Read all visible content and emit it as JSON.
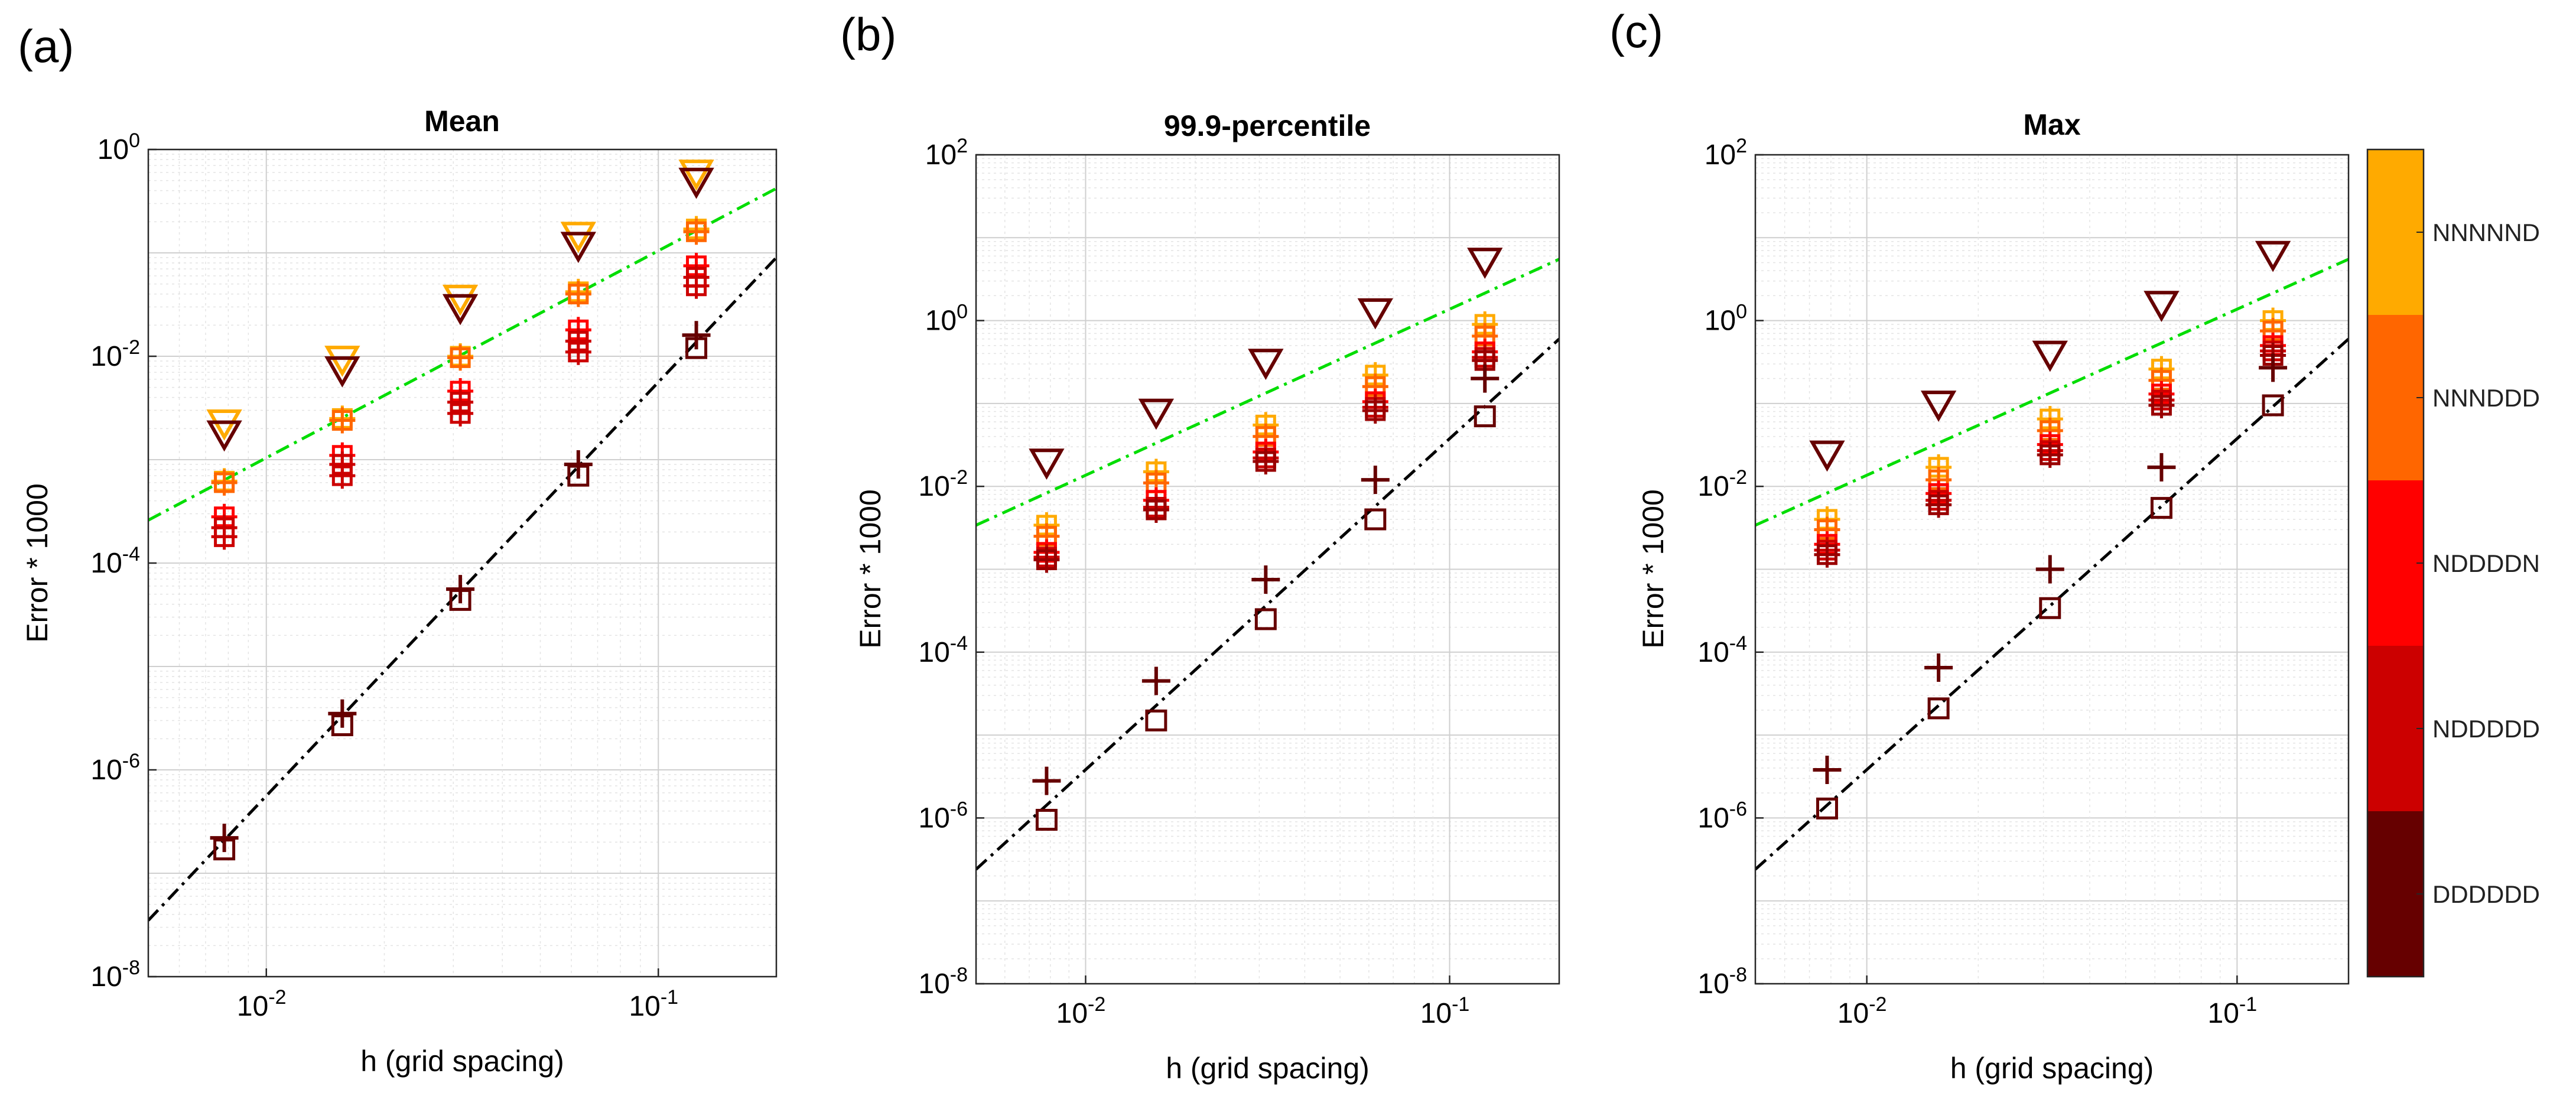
{
  "figure": {
    "panel_letters": [
      "(a)",
      "(b)",
      "(c)"
    ]
  },
  "colorbar": {
    "labels": [
      "NNNNND",
      "NNNDDD",
      "NDDDDN",
      "NDDDDD",
      "DDDDDD"
    ],
    "colors": [
      "#FFAA00",
      "#FF6600",
      "#FF0000",
      "#CC0000",
      "#660000"
    ]
  },
  "chart_data": [
    {
      "type": "scatter",
      "title": "Mean",
      "xlabel": "h (grid spacing)",
      "ylabel": "Error * 1000",
      "xscale": "log",
      "yscale": "log",
      "xlim": [
        0.005,
        0.2
      ],
      "ylim": [
        1e-08,
        1
      ],
      "xticks": [
        {
          "v": 0.01,
          "label": "10",
          "exp": "-2"
        },
        {
          "v": 0.1,
          "label": "10",
          "exp": "-1"
        }
      ],
      "yticks": [
        {
          "v": 1e-08,
          "label": "10",
          "exp": "-8"
        },
        {
          "v": 1e-06,
          "label": "10",
          "exp": "-6"
        },
        {
          "v": 0.0001,
          "label": "10",
          "exp": "-4"
        },
        {
          "v": 0.01,
          "label": "10",
          "exp": "-2"
        },
        {
          "v": 1,
          "label": "10",
          "exp": "0"
        }
      ],
      "x": [
        0.0078125,
        0.015625,
        0.03125,
        0.0625,
        0.125
      ],
      "series": [
        {
          "name": "triangle-NNNNND",
          "marker": "triangle",
          "color": "#FFAA00",
          "values": [
            0.0023,
            0.0095,
            0.037,
            0.15,
            0.6
          ]
        },
        {
          "name": "triangle-DDDDDD",
          "marker": "triangle",
          "color": "#660000",
          "values": [
            0.0018,
            0.0075,
            0.03,
            0.12,
            0.5
          ]
        },
        {
          "name": "plussq-NNNNND",
          "marker": "plussquare",
          "color": "#FFAA00",
          "values": [
            0.00062,
            0.0025,
            0.01,
            0.042,
            0.17
          ]
        },
        {
          "name": "plussq-NNNDDD",
          "marker": "plussquare",
          "color": "#FF6600",
          "values": [
            0.0006,
            0.0024,
            0.0097,
            0.04,
            0.16
          ]
        },
        {
          "name": "plussq-NDDDDN",
          "marker": "plussquare",
          "color": "#FF0000",
          "values": [
            0.00028,
            0.0011,
            0.0046,
            0.018,
            0.075
          ]
        },
        {
          "name": "plussq-NDDDDD-a",
          "marker": "plussquare",
          "color": "#CC0000",
          "values": [
            0.00022,
            0.0009,
            0.0036,
            0.014,
            0.058
          ]
        },
        {
          "name": "plussq-NDDDDD-b",
          "marker": "plussquare",
          "color": "#CC0000",
          "values": [
            0.00018,
            0.0007,
            0.0028,
            0.011,
            0.048
          ]
        },
        {
          "name": "plus-DDDDDD",
          "marker": "plus",
          "color": "#660000",
          "values": [
            2.2e-07,
            3.5e-06,
            5.6e-05,
            0.0009,
            0.016
          ]
        },
        {
          "name": "square-DDDDDD",
          "marker": "square",
          "color": "#660000",
          "values": [
            1.7e-07,
            2.7e-06,
            4.4e-05,
            0.0007,
            0.012
          ]
        }
      ],
      "ref_lines": [
        {
          "name": "green-ref",
          "color": "#00DD00",
          "x": [
            0.005,
            0.2
          ],
          "y": [
            0.00026,
            0.42
          ]
        },
        {
          "name": "black-ref",
          "color": "#000000",
          "x": [
            0.005,
            0.2
          ],
          "y": [
            3.5e-08,
            0.09
          ]
        }
      ]
    },
    {
      "type": "scatter",
      "title": "99.9-percentile",
      "xlabel": "h (grid spacing)",
      "ylabel": "Error * 1000",
      "xscale": "log",
      "yscale": "log",
      "xlim": [
        0.005,
        0.2
      ],
      "ylim": [
        1e-08,
        100
      ],
      "xticks": [
        {
          "v": 0.01,
          "label": "10",
          "exp": "-2"
        },
        {
          "v": 0.1,
          "label": "10",
          "exp": "-1"
        }
      ],
      "yticks": [
        {
          "v": 1e-08,
          "label": "10",
          "exp": "-8"
        },
        {
          "v": 1e-06,
          "label": "10",
          "exp": "-6"
        },
        {
          "v": 0.0001,
          "label": "10",
          "exp": "-4"
        },
        {
          "v": 0.01,
          "label": "10",
          "exp": "-2"
        },
        {
          "v": 1,
          "label": "10",
          "exp": "0"
        },
        {
          "v": 100,
          "label": "10",
          "exp": "2"
        }
      ],
      "x": [
        0.0078125,
        0.015625,
        0.03125,
        0.0625,
        0.125
      ],
      "series": [
        {
          "name": "triangle-DDDDDD",
          "marker": "triangle",
          "color": "#660000",
          "values": [
            0.02,
            0.08,
            0.32,
            1.3,
            5.3
          ]
        },
        {
          "name": "plussq-NNNNND",
          "marker": "plussquare",
          "color": "#FFAA00",
          "values": [
            0.0034,
            0.015,
            0.055,
            0.22,
            0.9
          ]
        },
        {
          "name": "plussq-NNNDDD",
          "marker": "plussquare",
          "color": "#FF6600",
          "values": [
            0.0025,
            0.011,
            0.04,
            0.16,
            0.65
          ]
        },
        {
          "name": "plussq-NDDDDN",
          "marker": "plussquare",
          "color": "#FF0000",
          "values": [
            0.0016,
            0.0068,
            0.026,
            0.105,
            0.42
          ]
        },
        {
          "name": "plussq-NDDDDD",
          "marker": "plussquare",
          "color": "#CC0000",
          "values": [
            0.0014,
            0.0056,
            0.022,
            0.09,
            0.36
          ]
        },
        {
          "name": "plussq-DDDDDD",
          "marker": "plussquare",
          "color": "#990000",
          "values": [
            0.0013,
            0.0052,
            0.02,
            0.082,
            0.33
          ]
        },
        {
          "name": "plus-DDDDDD",
          "marker": "plus",
          "color": "#660000",
          "values": [
            2.8e-06,
            4.5e-05,
            0.00075,
            0.012,
            0.2
          ]
        },
        {
          "name": "square-DDDDDD",
          "marker": "square",
          "color": "#660000",
          "values": [
            9.5e-07,
            1.5e-05,
            0.00025,
            0.004,
            0.07
          ]
        }
      ],
      "ref_lines": [
        {
          "name": "green-ref",
          "color": "#00DD00",
          "x": [
            0.005,
            0.2
          ],
          "y": [
            0.0034,
            5.5
          ]
        },
        {
          "name": "black-ref",
          "color": "#000000",
          "x": [
            0.005,
            0.2
          ],
          "y": [
            2.4e-07,
            0.6
          ]
        }
      ]
    },
    {
      "type": "scatter",
      "title": "Max",
      "xlabel": "h (grid spacing)",
      "ylabel": "Error * 1000",
      "xscale": "log",
      "yscale": "log",
      "xlim": [
        0.005,
        0.2
      ],
      "ylim": [
        1e-08,
        100
      ],
      "xticks": [
        {
          "v": 0.01,
          "label": "10",
          "exp": "-2"
        },
        {
          "v": 0.1,
          "label": "10",
          "exp": "-1"
        }
      ],
      "yticks": [
        {
          "v": 1e-08,
          "label": "10",
          "exp": "-8"
        },
        {
          "v": 1e-06,
          "label": "10",
          "exp": "-6"
        },
        {
          "v": 0.0001,
          "label": "10",
          "exp": "-4"
        },
        {
          "v": 0.01,
          "label": "10",
          "exp": "-2"
        },
        {
          "v": 1,
          "label": "10",
          "exp": "0"
        },
        {
          "v": 100,
          "label": "10",
          "exp": "2"
        }
      ],
      "x": [
        0.0078125,
        0.015625,
        0.03125,
        0.0625,
        0.125
      ],
      "series": [
        {
          "name": "triangle-DDDDDD",
          "marker": "triangle",
          "color": "#660000",
          "values": [
            0.025,
            0.1,
            0.4,
            1.6,
            6.4
          ]
        },
        {
          "name": "plussq-NNNNND",
          "marker": "plussquare",
          "color": "#FFAA00",
          "values": [
            0.004,
            0.017,
            0.065,
            0.26,
            1.0
          ]
        },
        {
          "name": "plussq-NNNDDD",
          "marker": "plussquare",
          "color": "#FF6600",
          "values": [
            0.003,
            0.012,
            0.047,
            0.19,
            0.75
          ]
        },
        {
          "name": "plussq-NDDDDN",
          "marker": "plussquare",
          "color": "#FF0000",
          "values": [
            0.002,
            0.0082,
            0.032,
            0.13,
            0.5
          ]
        },
        {
          "name": "plussq-NDDDDD",
          "marker": "plussquare",
          "color": "#CC0000",
          "values": [
            0.0017,
            0.0068,
            0.027,
            0.11,
            0.43
          ]
        },
        {
          "name": "plussq-DDDDDD",
          "marker": "plussquare",
          "color": "#990000",
          "values": [
            0.0015,
            0.006,
            0.024,
            0.095,
            0.38
          ]
        },
        {
          "name": "plus-DDDDDD",
          "marker": "plus",
          "color": "#660000",
          "values": [
            3.8e-06,
            6.5e-05,
            0.001,
            0.017,
            0.27
          ]
        },
        {
          "name": "square-DDDDDD",
          "marker": "square",
          "color": "#660000",
          "values": [
            1.3e-06,
            2.1e-05,
            0.00034,
            0.0055,
            0.095
          ]
        }
      ],
      "ref_lines": [
        {
          "name": "green-ref",
          "color": "#00DD00",
          "x": [
            0.005,
            0.2
          ],
          "y": [
            0.0034,
            5.5
          ]
        },
        {
          "name": "black-ref",
          "color": "#000000",
          "x": [
            0.005,
            0.2
          ],
          "y": [
            2.4e-07,
            0.6
          ]
        }
      ]
    }
  ]
}
